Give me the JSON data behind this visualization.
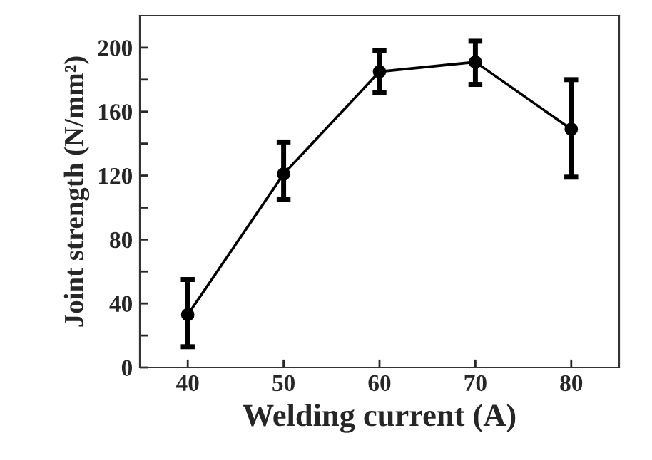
{
  "chart_data": {
    "type": "line",
    "xlabel": "Welding current (A)",
    "ylabel": "Joint strength (N/mm²)",
    "x": [
      40,
      50,
      60,
      70,
      80
    ],
    "series": [
      {
        "color": "#000000",
        "values": [
          33,
          121,
          185,
          191,
          149
        ],
        "errors": [
          [
            13,
            55
          ],
          [
            105,
            141
          ],
          [
            172,
            198
          ],
          [
            177,
            204
          ],
          [
            119,
            180
          ]
        ]
      }
    ],
    "xlim": [
      35,
      85
    ],
    "xticks": [
      40,
      50,
      60,
      70,
      80
    ],
    "ylim": [
      0,
      220
    ],
    "yticks": [
      0,
      {
        "value": 20,
        "label": null
      },
      40,
      {
        "value": 60,
        "label": null
      },
      80,
      {
        "value": 100,
        "label": null
      },
      120,
      {
        "value": 140,
        "label": null
      },
      160,
      {
        "value": 180,
        "label": null
      },
      200
    ],
    "marker": "circle",
    "line_style": "solid",
    "grid": false,
    "legend": false
  }
}
